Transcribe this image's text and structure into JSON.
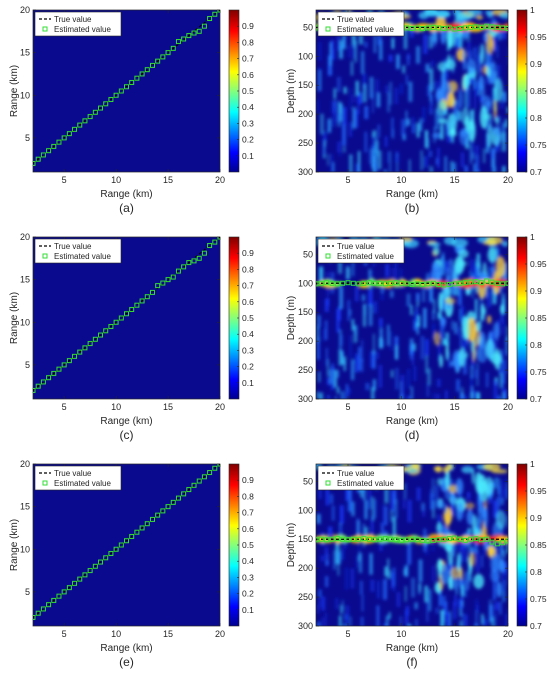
{
  "colors": {
    "background_blue": "#0a0a8f",
    "true_line": "#000000",
    "estimated_marker": "#33dd33"
  },
  "chart_data": [
    {
      "panel": "a",
      "type": "heatmap",
      "caption": "(a)",
      "xlabel": "Range (km)",
      "ylabel": "Range (km)",
      "xlim": [
        2,
        20
      ],
      "ylim": [
        1,
        20
      ],
      "xticks": [
        5,
        10,
        15,
        20
      ],
      "yticks": [
        5,
        10,
        15,
        20
      ],
      "colorbar": {
        "lim": [
          0,
          1
        ],
        "ticks": [
          0.1,
          0.2,
          0.3,
          0.4,
          0.5,
          0.6,
          0.7,
          0.8,
          0.9
        ]
      },
      "legend": {
        "placement": "top-left",
        "entries": [
          "True value",
          "Estimated value"
        ]
      },
      "true_line": {
        "x": [
          2,
          20
        ],
        "y": [
          2,
          20
        ]
      },
      "estimated": {
        "x": [
          2,
          2.5,
          3,
          3.5,
          4,
          4.5,
          5,
          5.5,
          6,
          6.5,
          7,
          7.5,
          8,
          8.5,
          9,
          9.5,
          10,
          10.5,
          11,
          11.5,
          12,
          12.5,
          13,
          13.5,
          14,
          14.5,
          15,
          15.5,
          16,
          16.5,
          17,
          17.5,
          18,
          18.5,
          19,
          19.5,
          20
        ],
        "y": [
          2,
          2.5,
          3,
          3.5,
          4,
          4.5,
          5,
          5.5,
          6,
          6.5,
          7,
          7.5,
          8,
          8.5,
          9,
          9.5,
          10,
          10.5,
          11,
          11.5,
          12,
          12.5,
          13,
          13.5,
          14,
          14.5,
          15,
          15.5,
          16.3,
          16.6,
          17,
          17.3,
          17.5,
          18.1,
          19,
          19.5,
          20
        ]
      }
    },
    {
      "panel": "b",
      "type": "heatmap",
      "caption": "(b)",
      "xlabel": "Range (km)",
      "ylabel": "Depth (m)",
      "xlim": [
        2,
        20
      ],
      "ylim": [
        20,
        300
      ],
      "y_reversed": true,
      "xticks": [
        5,
        10,
        15,
        20
      ],
      "yticks": [
        50,
        100,
        150,
        200,
        250,
        300
      ],
      "colorbar": {
        "lim": [
          0.7,
          1
        ],
        "ticks": [
          0.7,
          0.75,
          0.8,
          0.85,
          0.9,
          0.95,
          1
        ]
      },
      "legend": {
        "placement": "top-left",
        "entries": [
          "True value",
          "Estimated value"
        ]
      },
      "true_line": {
        "x": [
          2,
          20
        ],
        "y": [
          50,
          50
        ]
      },
      "estimated": {
        "x": [
          2,
          2.5,
          3,
          3.5,
          4,
          4.5,
          5,
          5.5,
          6,
          6.5,
          7,
          7.5,
          8,
          8.5,
          9,
          9.5,
          10,
          10.5,
          11,
          11.5,
          12,
          12.5,
          13,
          13.5,
          14,
          14.5,
          15,
          15.5,
          16,
          16.5,
          17,
          17.5,
          18,
          18.5,
          19,
          19.5,
          20
        ],
        "y": [
          51,
          50,
          51,
          50,
          50,
          51,
          50,
          49,
          51,
          50,
          50,
          51,
          50,
          50,
          51,
          51,
          50,
          51,
          52,
          51,
          52,
          51,
          50,
          51,
          52,
          51,
          53,
          52,
          51,
          50,
          49,
          50,
          48,
          49,
          50,
          51,
          52
        ]
      }
    },
    {
      "panel": "c",
      "type": "heatmap",
      "caption": "(c)",
      "xlabel": "Range (km)",
      "ylabel": "Range (km)",
      "xlim": [
        2,
        20
      ],
      "ylim": [
        1,
        20
      ],
      "xticks": [
        5,
        10,
        15,
        20
      ],
      "yticks": [
        5,
        10,
        15,
        20
      ],
      "colorbar": {
        "lim": [
          0,
          1
        ],
        "ticks": [
          0.1,
          0.2,
          0.3,
          0.4,
          0.5,
          0.6,
          0.7,
          0.8,
          0.9
        ]
      },
      "legend": {
        "placement": "top-left",
        "entries": [
          "True value",
          "Estimated value"
        ]
      },
      "true_line": {
        "x": [
          2,
          20
        ],
        "y": [
          2,
          20
        ]
      },
      "estimated": {
        "x": [
          2,
          2.5,
          3,
          3.5,
          4,
          4.5,
          5,
          5.5,
          6,
          6.5,
          7,
          7.5,
          8,
          8.5,
          9,
          9.5,
          10,
          10.5,
          11,
          11.5,
          12,
          12.5,
          13,
          13.5,
          14,
          14.5,
          15,
          15.5,
          16,
          16.5,
          17,
          17.5,
          18,
          18.5,
          19,
          19.5,
          20
        ],
        "y": [
          2,
          2.5,
          3,
          3.5,
          4,
          4.5,
          5,
          5.5,
          6,
          6.5,
          7,
          7.5,
          8,
          8.5,
          9,
          9.5,
          10,
          10.5,
          11,
          11.5,
          12,
          12.5,
          13,
          13.5,
          14.3,
          14.6,
          15,
          15.3,
          16,
          16.5,
          17,
          17.2,
          17.5,
          18.1,
          19,
          19.4,
          20
        ]
      }
    },
    {
      "panel": "d",
      "type": "heatmap",
      "caption": "(d)",
      "xlabel": "Range (km)",
      "ylabel": "Depth (m)",
      "xlim": [
        2,
        20
      ],
      "ylim": [
        20,
        300
      ],
      "y_reversed": true,
      "xticks": [
        5,
        10,
        15,
        20
      ],
      "yticks": [
        50,
        100,
        150,
        200,
        250,
        300
      ],
      "colorbar": {
        "lim": [
          0.7,
          1
        ],
        "ticks": [
          0.7,
          0.75,
          0.8,
          0.85,
          0.9,
          0.95,
          1
        ]
      },
      "legend": {
        "placement": "top-left",
        "entries": [
          "True value",
          "Estimated value"
        ]
      },
      "true_line": {
        "x": [
          2,
          20
        ],
        "y": [
          100,
          100
        ]
      },
      "estimated": {
        "x": [
          2,
          2.5,
          3,
          3.5,
          4,
          4.5,
          5,
          5.5,
          6,
          6.5,
          7,
          7.5,
          8,
          8.5,
          9,
          9.5,
          10,
          10.5,
          11,
          11.5,
          12,
          12.5,
          13,
          13.5,
          14,
          14.5,
          15,
          15.5,
          16,
          16.5,
          17,
          17.5,
          18,
          18.5,
          19,
          19.5,
          20
        ],
        "y": [
          101,
          100,
          99,
          100,
          101,
          100,
          99,
          100,
          101,
          100,
          99,
          100,
          100,
          101,
          100,
          99,
          100,
          101,
          102,
          101,
          102,
          101,
          100,
          102,
          103,
          102,
          101,
          100,
          99,
          98,
          97,
          99,
          96,
          98,
          100,
          101,
          100
        ]
      }
    },
    {
      "panel": "e",
      "type": "heatmap",
      "caption": "(e)",
      "xlabel": "Range (km)",
      "ylabel": "Range (km)",
      "xlim": [
        2,
        20
      ],
      "ylim": [
        1,
        20
      ],
      "xticks": [
        5,
        10,
        15,
        20
      ],
      "yticks": [
        5,
        10,
        15,
        20
      ],
      "colorbar": {
        "lim": [
          0,
          1
        ],
        "ticks": [
          0.1,
          0.2,
          0.3,
          0.4,
          0.5,
          0.6,
          0.7,
          0.8,
          0.9
        ]
      },
      "legend": {
        "placement": "top-left",
        "entries": [
          "True value",
          "Estimated value"
        ]
      },
      "true_line": {
        "x": [
          2,
          20
        ],
        "y": [
          2,
          20
        ]
      },
      "estimated": {
        "x": [
          2,
          2.5,
          3,
          3.5,
          4,
          4.5,
          5,
          5.5,
          6,
          6.5,
          7,
          7.5,
          8,
          8.5,
          9,
          9.5,
          10,
          10.5,
          11,
          11.5,
          12,
          12.5,
          13,
          13.5,
          14,
          14.5,
          15,
          15.5,
          16,
          16.5,
          17,
          17.5,
          18,
          18.5,
          19,
          19.5,
          20
        ],
        "y": [
          2,
          2.5,
          3,
          3.5,
          4,
          4.5,
          5,
          5.5,
          6,
          6.5,
          7,
          7.5,
          8,
          8.5,
          9,
          9.5,
          10,
          10.5,
          11,
          11.5,
          12,
          12.5,
          13,
          13.5,
          14,
          14.5,
          15,
          15.5,
          16,
          16.5,
          17,
          17.5,
          18,
          18.5,
          19,
          19.5,
          20
        ]
      }
    },
    {
      "panel": "f",
      "type": "heatmap",
      "caption": "(f)",
      "xlabel": "Range (km)",
      "ylabel": "Depth (m)",
      "xlim": [
        2,
        20
      ],
      "ylim": [
        20,
        300
      ],
      "y_reversed": true,
      "xticks": [
        5,
        10,
        15,
        20
      ],
      "yticks": [
        50,
        100,
        150,
        200,
        250,
        300
      ],
      "colorbar": {
        "lim": [
          0.7,
          1
        ],
        "ticks": [
          0.7,
          0.75,
          0.8,
          0.85,
          0.9,
          0.95,
          1
        ]
      },
      "legend": {
        "placement": "top-left",
        "entries": [
          "True value",
          "Estimated value"
        ]
      },
      "true_line": {
        "x": [
          2,
          20
        ],
        "y": [
          150,
          150
        ]
      },
      "estimated": {
        "x": [
          2,
          2.5,
          3,
          3.5,
          4,
          4.5,
          5,
          5.5,
          6,
          6.5,
          7,
          7.5,
          8,
          8.5,
          9,
          9.5,
          10,
          10.5,
          11,
          11.5,
          12,
          12.5,
          13,
          13.5,
          14,
          14.5,
          15,
          15.5,
          16,
          16.5,
          17,
          17.5,
          18,
          18.5,
          19,
          19.5,
          20
        ],
        "y": [
          151,
          150,
          151,
          150,
          149,
          150,
          151,
          150,
          150,
          149,
          150,
          151,
          150,
          149,
          150,
          151,
          152,
          151,
          150,
          151,
          152,
          153,
          152,
          151,
          150,
          149,
          148,
          150,
          152,
          150,
          149,
          151,
          150,
          155,
          158,
          156,
          153
        ]
      }
    }
  ]
}
